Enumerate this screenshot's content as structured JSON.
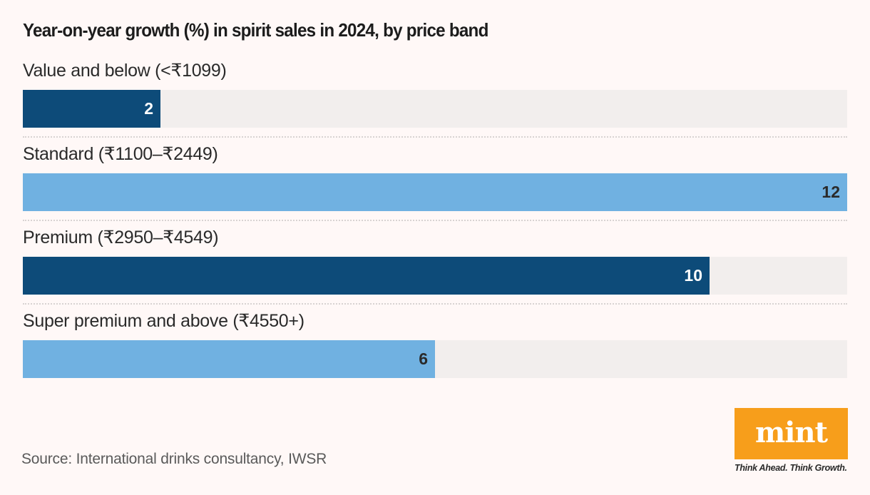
{
  "chart_data": {
    "type": "bar",
    "orientation": "horizontal",
    "title": "Year-on-year growth (%) in spirit sales in 2024, by price band",
    "xlabel": "",
    "ylabel": "",
    "xlim": [
      0,
      12
    ],
    "grid": false,
    "categories": [
      "Value and below (<₹1099)",
      "Standard (₹1100–₹2449)",
      "Premium (₹2950–₹4549)",
      "Super premium and above (₹4550+)"
    ],
    "values": [
      2,
      12,
      10,
      6
    ],
    "data_labels": [
      "2",
      "12",
      "10",
      "6"
    ],
    "bar_colors": [
      "#0d4b79",
      "#70b1e1",
      "#0d4b79",
      "#70b1e1"
    ],
    "label_colors": [
      "#ffffff",
      "#2a2a2a",
      "#ffffff",
      "#2a2a2a"
    ],
    "track_color": "#f2eeed"
  },
  "source": "Source: International drinks consultancy, IWSR",
  "branding": {
    "logo": "mint",
    "tagline": "Think Ahead. Think Growth.",
    "logo_color": "#f79e1b"
  }
}
